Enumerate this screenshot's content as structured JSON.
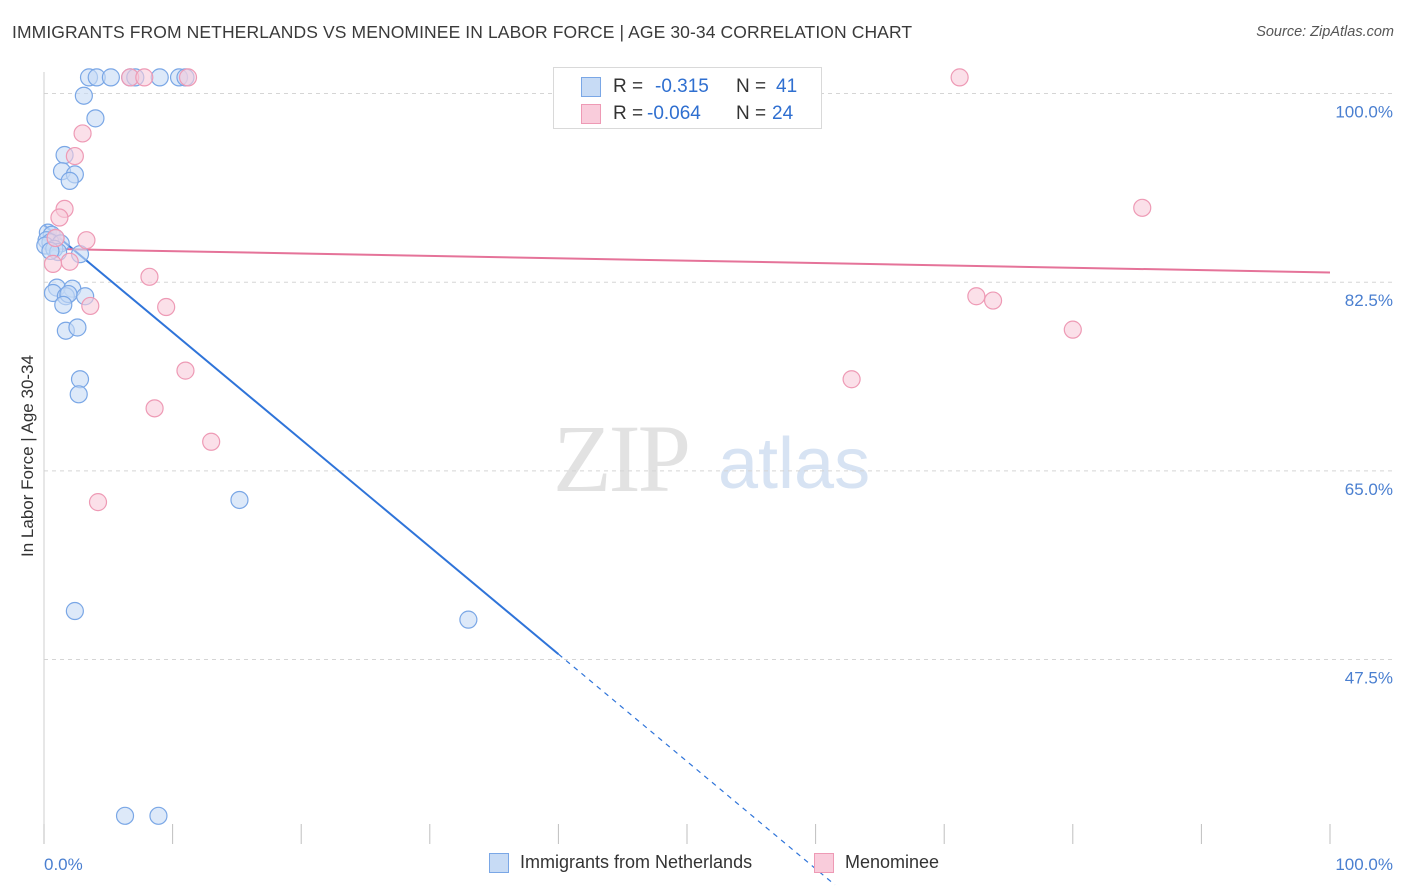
{
  "header": {
    "title": "IMMIGRANTS FROM NETHERLANDS VS MENOMINEE IN LABOR FORCE | AGE 30-34 CORRELATION CHART",
    "source": "Source: ZipAtlas.com"
  },
  "watermark": {
    "zip": "ZIP",
    "atlas": "atlas"
  },
  "stats": {
    "rows": [
      {
        "r_label": "R =",
        "r_value": "-0.315",
        "n_label": "N =",
        "n_value": "41"
      },
      {
        "r_label": "R =",
        "r_value": "-0.064",
        "n_label": "N =",
        "n_value": "24"
      }
    ]
  },
  "legend": {
    "items": [
      {
        "label": "Immigrants from Netherlands"
      },
      {
        "label": "Menominee"
      }
    ]
  },
  "colors": {
    "blue_fill": "#c7dbf5",
    "blue_stroke": "#7aa7e6",
    "blue_line": "#2f74d9",
    "pink_fill": "#f9ccdb",
    "pink_stroke": "#ee9ab5",
    "pink_line": "#e57399",
    "tick_text": "#4a7fd0",
    "grid": "#d5d5d5"
  },
  "chart_data": {
    "type": "scatter",
    "title": "IMMIGRANTS FROM NETHERLANDS VS MENOMINEE IN LABOR FORCE | AGE 30-34 CORRELATION CHART",
    "xlabel": "",
    "ylabel": "In Labor Force | Age 30-34",
    "xlim": [
      0,
      100
    ],
    "ylim": [
      31.5,
      102
    ],
    "x_tick_labels": [
      "0.0%",
      "100.0%"
    ],
    "y_ticks": [
      100.0,
      82.5,
      65.0,
      47.5
    ],
    "y_tick_labels": [
      "100.0%",
      "82.5%",
      "65.0%",
      "47.5%"
    ],
    "grid": "horizontal dashed",
    "series": [
      {
        "name": "Immigrants from Netherlands",
        "color": "#7aa7e6",
        "points": [
          [
            3.5,
            101.5
          ],
          [
            4.1,
            101.5
          ],
          [
            5.2,
            101.5
          ],
          [
            6.7,
            101.5
          ],
          [
            7.1,
            101.5
          ],
          [
            9.0,
            101.5
          ],
          [
            10.5,
            101.5
          ],
          [
            11.0,
            101.5
          ],
          [
            3.1,
            99.8
          ],
          [
            4.0,
            97.7
          ],
          [
            1.6,
            94.3
          ],
          [
            1.4,
            92.8
          ],
          [
            2.4,
            92.5
          ],
          [
            2.0,
            91.9
          ],
          [
            0.3,
            87.1
          ],
          [
            0.6,
            86.9
          ],
          [
            0.9,
            86.6
          ],
          [
            0.2,
            86.4
          ],
          [
            0.5,
            86.2
          ],
          [
            1.3,
            86.1
          ],
          [
            0.1,
            85.9
          ],
          [
            0.8,
            85.6
          ],
          [
            1.1,
            85.3
          ],
          [
            2.8,
            85.1
          ],
          [
            0.5,
            85.4
          ],
          [
            1.0,
            82.0
          ],
          [
            2.2,
            81.9
          ],
          [
            0.7,
            81.5
          ],
          [
            1.7,
            81.2
          ],
          [
            3.2,
            81.2
          ],
          [
            1.9,
            81.4
          ],
          [
            1.5,
            80.4
          ],
          [
            1.7,
            78.0
          ],
          [
            2.6,
            78.3
          ],
          [
            2.8,
            73.5
          ],
          [
            2.7,
            72.1
          ],
          [
            15.2,
            62.3
          ],
          [
            2.4,
            52.0
          ],
          [
            33.0,
            51.2
          ],
          [
            6.3,
            33.0
          ],
          [
            8.9,
            33.0
          ]
        ]
      },
      {
        "name": "Menominee",
        "color": "#ee9ab5",
        "points": [
          [
            6.7,
            101.5
          ],
          [
            7.8,
            101.5
          ],
          [
            11.2,
            101.5
          ],
          [
            71.2,
            101.5
          ],
          [
            3.0,
            96.3
          ],
          [
            2.4,
            94.2
          ],
          [
            1.6,
            89.3
          ],
          [
            1.2,
            88.5
          ],
          [
            3.3,
            86.4
          ],
          [
            2.0,
            84.4
          ],
          [
            0.7,
            84.2
          ],
          [
            8.2,
            83.0
          ],
          [
            9.5,
            80.2
          ],
          [
            72.5,
            81.2
          ],
          [
            73.8,
            80.8
          ],
          [
            80.0,
            78.1
          ],
          [
            3.6,
            80.3
          ],
          [
            11.0,
            74.3
          ],
          [
            62.8,
            73.5
          ],
          [
            8.6,
            70.8
          ],
          [
            13.0,
            67.7
          ],
          [
            4.2,
            62.1
          ],
          [
            85.4,
            89.4
          ],
          [
            0.9,
            86.6
          ]
        ]
      }
    ],
    "trendlines": [
      {
        "series": "Immigrants from Netherlands",
        "x": [
          0,
          40
        ],
        "y": [
          87.8,
          48.0
        ],
        "dashed_extension_to": [
          61.5,
          26.6
        ]
      },
      {
        "series": "Menominee",
        "x": [
          0,
          100
        ],
        "y": [
          85.6,
          83.4
        ]
      }
    ]
  }
}
